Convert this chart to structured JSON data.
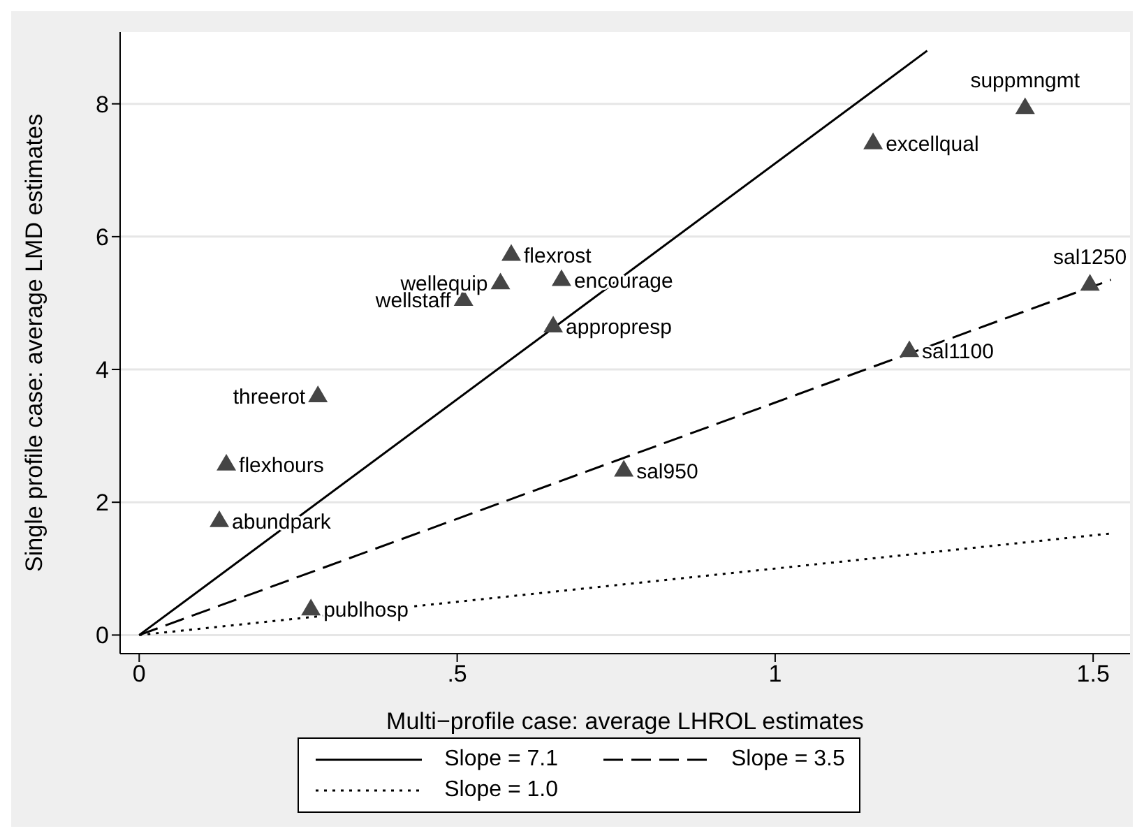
{
  "chart_data": {
    "type": "scatter",
    "xlabel": "Multi−profile case: average LHROL estimates",
    "ylabel": "Single profile case: average LMD estimates",
    "xlim": [
      -0.03,
      1.558
    ],
    "ylim": [
      -0.28,
      9.08
    ],
    "xticks": [
      0,
      {
        "value": 0.5,
        "label": ".5"
      },
      1,
      1.5
    ],
    "yticks": [
      0,
      2,
      4,
      6,
      8
    ],
    "grid": "y",
    "legend": "bottom",
    "marker": "triangle",
    "series": [
      {
        "color": "#454545",
        "x": [
          0.585,
          0.568,
          0.664,
          0.51,
          0.651,
          0.281,
          0.137,
          0.126,
          0.27,
          1.393,
          1.154,
          1.495,
          1.211,
          0.762
        ],
        "values": [
          5.74,
          5.31,
          5.36,
          5.06,
          4.66,
          3.61,
          2.58,
          1.73,
          0.4,
          7.95,
          7.42,
          5.29,
          4.29,
          2.49
        ]
      },
      {
        "type": "line",
        "name": "Slope = 7.1",
        "color": "#000000",
        "line_style": "solid",
        "marker": "none",
        "x": [
          0,
          1.239
        ],
        "values": [
          0,
          8.8
        ]
      },
      {
        "type": "line",
        "name": "Slope = 3.5",
        "color": "#000000",
        "line_style": "dashed",
        "marker": "none",
        "x": [
          0,
          1.528
        ],
        "values": [
          0,
          5.35
        ]
      },
      {
        "type": "line",
        "name": "Slope = 1.0",
        "color": "#000000",
        "line_style": "dotted",
        "marker": "none",
        "x": [
          0,
          1.528
        ],
        "values": [
          0,
          1.53
        ]
      }
    ],
    "annotations": [
      {
        "text": "flexrost",
        "x": 0.585,
        "y": 5.74
      },
      {
        "text": "wellequip",
        "x": 0.568,
        "y": 5.31
      },
      {
        "text": "encourage",
        "x": 0.664,
        "y": 5.36
      },
      {
        "text": "wellstaff",
        "x": 0.51,
        "y": 5.06
      },
      {
        "text": "appropresp",
        "x": 0.651,
        "y": 4.66
      },
      {
        "text": "threerot",
        "x": 0.281,
        "y": 3.61
      },
      {
        "text": "flexhours",
        "x": 0.137,
        "y": 2.58
      },
      {
        "text": "abundpark",
        "x": 0.126,
        "y": 1.73
      },
      {
        "text": "publhosp",
        "x": 0.27,
        "y": 0.4
      },
      {
        "text": "suppmngmt",
        "x": 1.393,
        "y": 7.95
      },
      {
        "text": "excellqual",
        "x": 1.154,
        "y": 7.42
      },
      {
        "text": "sal1250",
        "x": 1.495,
        "y": 5.29
      },
      {
        "text": "sal1100",
        "x": 1.211,
        "y": 4.29
      },
      {
        "text": "sal950",
        "x": 0.762,
        "y": 2.49
      }
    ]
  }
}
